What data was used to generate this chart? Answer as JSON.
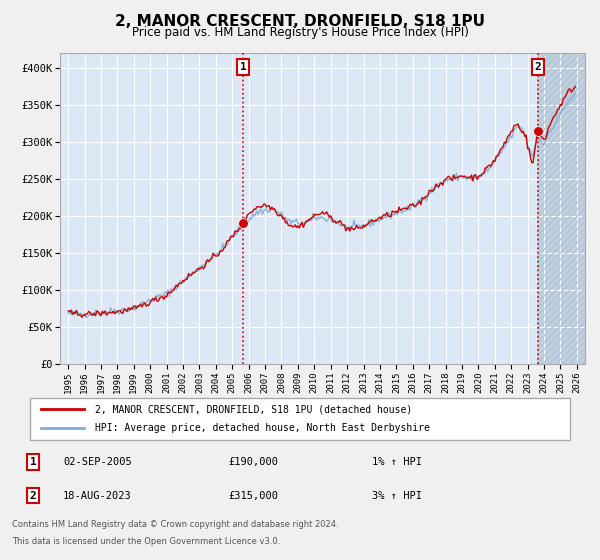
{
  "title": "2, MANOR CRESCENT, DRONFIELD, S18 1PU",
  "subtitle": "Price paid vs. HM Land Registry's House Price Index (HPI)",
  "title_fontsize": 11,
  "subtitle_fontsize": 8.5,
  "fig_bg_color": "#f0f0f0",
  "plot_bg_color": "#dce8f5",
  "grid_color": "#c8d8e8",
  "hpi_line_color": "#7bafd4",
  "price_line_color": "#cc0000",
  "marker_color": "#cc0000",
  "vline_color": "#cc0000",
  "annotation_box_edge": "#cc0000",
  "ylim": [
    0,
    420000
  ],
  "yticks": [
    0,
    50000,
    100000,
    150000,
    200000,
    250000,
    300000,
    350000,
    400000
  ],
  "ytick_labels": [
    "£0",
    "£50K",
    "£100K",
    "£150K",
    "£200K",
    "£250K",
    "£300K",
    "£350K",
    "£400K"
  ],
  "xlim_start": 1994.5,
  "xlim_end": 2026.5,
  "xticks": [
    1995,
    1996,
    1997,
    1998,
    1999,
    2000,
    2001,
    2002,
    2003,
    2004,
    2005,
    2006,
    2007,
    2008,
    2009,
    2010,
    2011,
    2012,
    2013,
    2014,
    2015,
    2016,
    2017,
    2018,
    2019,
    2020,
    2021,
    2022,
    2023,
    2024,
    2025,
    2026
  ],
  "shaded_region_start": 2023.62,
  "shaded_region_color": "#c0d0e0",
  "marker1_x": 2005.67,
  "marker1_y": 190000,
  "marker2_x": 2023.62,
  "marker2_y": 315000,
  "legend_line1": "2, MANOR CRESCENT, DRONFIELD, S18 1PU (detached house)",
  "legend_line2": "HPI: Average price, detached house, North East Derbyshire",
  "ann1_label": "1",
  "ann1_date": "02-SEP-2005",
  "ann1_price": "£190,000",
  "ann1_hpi": "1% ↑ HPI",
  "ann2_label": "2",
  "ann2_date": "18-AUG-2023",
  "ann2_price": "£315,000",
  "ann2_hpi": "3% ↑ HPI",
  "footer1": "Contains HM Land Registry data © Crown copyright and database right 2024.",
  "footer2": "This data is licensed under the Open Government Licence v3.0."
}
